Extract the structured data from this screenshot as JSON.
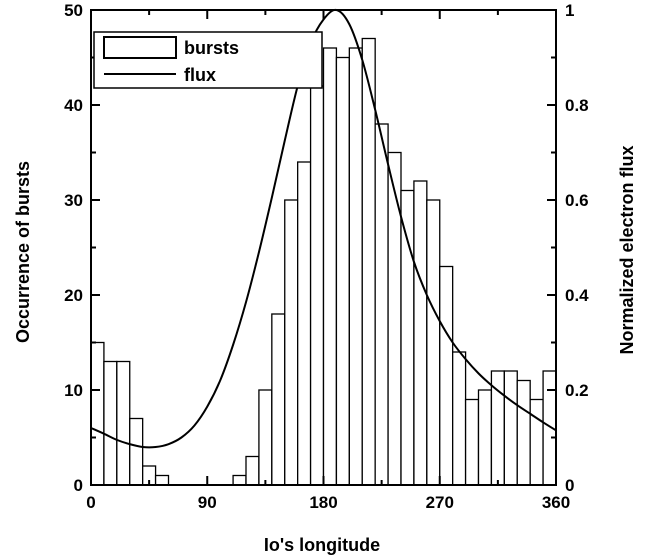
{
  "chart_data": {
    "type": "bar",
    "xlabel": "Io's longitude",
    "ylabel": "Occurrence of bursts",
    "y2label": "Normalized electron flux",
    "xlim": [
      0,
      360
    ],
    "ylim": [
      0,
      50
    ],
    "y2lim": [
      0,
      1
    ],
    "xticks": [
      "0",
      "90",
      "180",
      "270",
      "360"
    ],
    "xtick_values": [
      0,
      90,
      180,
      270,
      360
    ],
    "yticks": [
      "0",
      "10",
      "20",
      "30",
      "40",
      "50"
    ],
    "ytick_values": [
      0,
      10,
      20,
      30,
      40,
      50
    ],
    "y2ticks": [
      "0",
      "0.2",
      "0.4",
      "0.6",
      "0.8",
      "1"
    ],
    "y2tick_values": [
      0,
      0.2,
      0.4,
      0.6,
      0.8,
      1
    ],
    "bin_width": 10,
    "legend": {
      "position": "top-left",
      "entries": [
        "bursts",
        "flux"
      ]
    },
    "series": [
      {
        "name": "bursts",
        "kind": "histogram",
        "bin_starts": [
          0,
          10,
          20,
          30,
          40,
          50,
          60,
          70,
          80,
          90,
          100,
          110,
          120,
          130,
          140,
          150,
          160,
          170,
          180,
          190,
          200,
          210,
          220,
          230,
          240,
          250,
          260,
          270,
          280,
          290,
          300,
          310,
          320,
          330,
          340,
          350
        ],
        "values": [
          15,
          13,
          13,
          7,
          2,
          1,
          0,
          0,
          0,
          0,
          0,
          1,
          3,
          10,
          18,
          30,
          34,
          42,
          46,
          45,
          46,
          47,
          38,
          35,
          31,
          32,
          30,
          23,
          14,
          9,
          10,
          12,
          12,
          11,
          9,
          12
        ]
      },
      {
        "name": "flux",
        "kind": "line",
        "axis": "right",
        "x": [
          0,
          10,
          20,
          30,
          40,
          50,
          60,
          70,
          80,
          90,
          100,
          110,
          120,
          130,
          140,
          150,
          160,
          170,
          180,
          190,
          200,
          210,
          220,
          230,
          240,
          250,
          260,
          270,
          280,
          290,
          300,
          310,
          320,
          330,
          340,
          350,
          360
        ],
        "values": [
          0.12,
          0.108,
          0.095,
          0.086,
          0.08,
          0.08,
          0.086,
          0.1,
          0.125,
          0.165,
          0.22,
          0.295,
          0.385,
          0.49,
          0.605,
          0.725,
          0.84,
          0.93,
          0.98,
          1.0,
          0.97,
          0.895,
          0.79,
          0.675,
          0.565,
          0.47,
          0.4,
          0.345,
          0.3,
          0.265,
          0.235,
          0.21,
          0.188,
          0.168,
          0.15,
          0.132,
          0.115
        ]
      }
    ]
  }
}
